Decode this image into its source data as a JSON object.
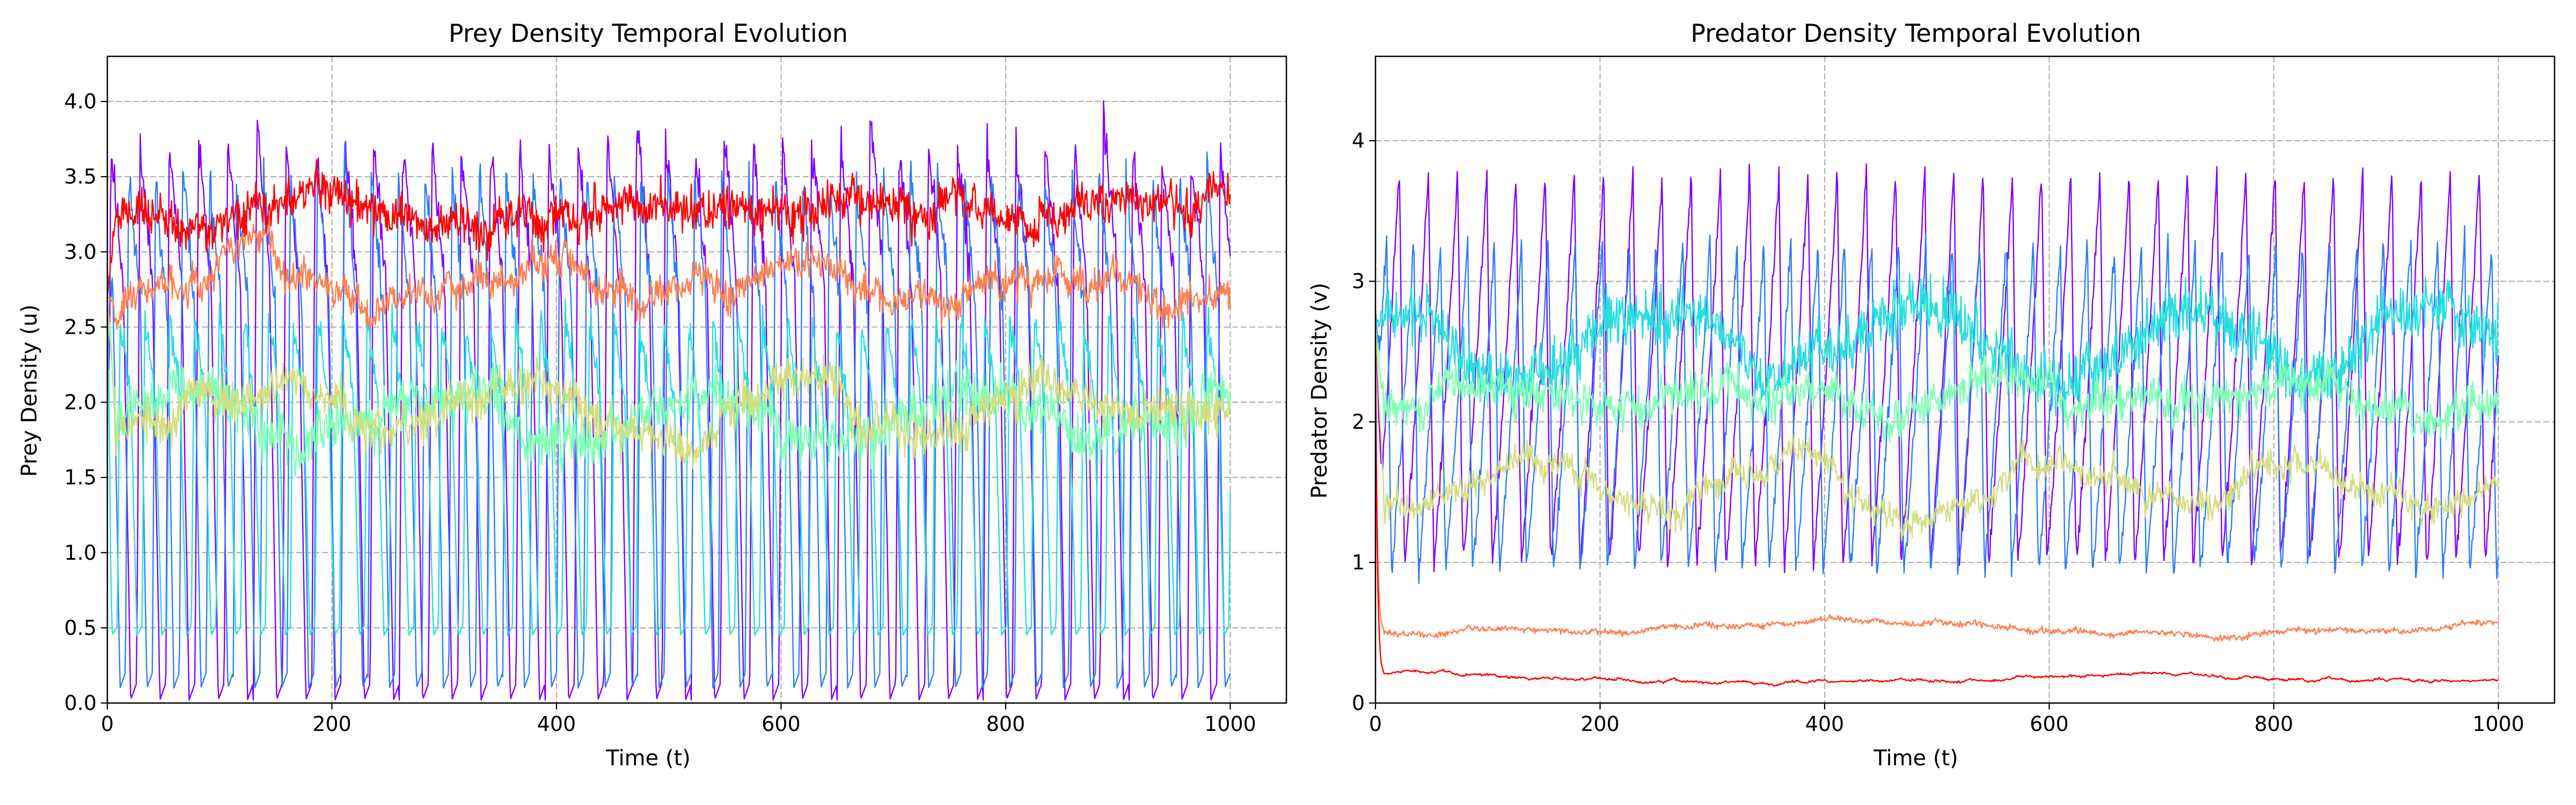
{
  "chart_data": [
    {
      "type": "line",
      "title": "Prey Density Temporal Evolution",
      "xlabel": "Time (t)",
      "ylabel": "Prey Density (u)",
      "xlim": [
        0,
        1050
      ],
      "ylim": [
        0,
        4.3
      ],
      "xticks": [
        0,
        200,
        400,
        600,
        800,
        1000
      ],
      "xtick_labels": [
        "0",
        "200",
        "400",
        "600",
        "800",
        "1000"
      ],
      "yticks": [
        0.0,
        0.5,
        1.0,
        1.5,
        2.0,
        2.5,
        3.0,
        3.5,
        4.0
      ],
      "ytick_labels": [
        "0.0",
        "0.5",
        "1.0",
        "1.5",
        "2.0",
        "2.5",
        "3.0",
        "3.5",
        "4.0"
      ],
      "grid": true,
      "grid_style": "dashed",
      "series": [
        {
          "color": "#8000ff",
          "kind": "oscillation",
          "min": 0.02,
          "max": 3.7,
          "period": 26,
          "phase": 0.0,
          "noise": 0.12,
          "peak_boost": 0.3,
          "seed": 11
        },
        {
          "color": "#2c7ef7",
          "kind": "oscillation",
          "min": 0.1,
          "max": 3.5,
          "period": 24,
          "phase": 0.33,
          "noise": 0.12,
          "peak_boost": 0.15,
          "seed": 23
        },
        {
          "color": "#2adddd",
          "kind": "oscillation",
          "min": 0.45,
          "max": 2.55,
          "period": 22,
          "phase": 0.6,
          "noise": 0.1,
          "peak_boost": 0.05,
          "seed": 37
        },
        {
          "color": "#80ffb4",
          "kind": "noisy",
          "mean": 1.9,
          "amp": 0.15,
          "noise": 0.12,
          "seed": 41
        },
        {
          "color": "#d4dd80",
          "kind": "noisy",
          "mean": 2.0,
          "amp": 0.15,
          "noise": 0.1,
          "seed": 53
        },
        {
          "color": "#ff7f50",
          "kind": "noisy",
          "mean": 2.8,
          "amp": 0.1,
          "noise": 0.08,
          "seed": 67
        },
        {
          "color": "#ff0000",
          "kind": "noisy",
          "mean": 3.28,
          "amp": 0.05,
          "noise": 0.1,
          "seed": 79
        }
      ]
    },
    {
      "type": "line",
      "title": "Predator Density Temporal Evolution",
      "xlabel": "Time (t)",
      "ylabel": "Predator Density (v)",
      "xlim": [
        0,
        1050
      ],
      "ylim": [
        0,
        4.6
      ],
      "xticks": [
        0,
        200,
        400,
        600,
        800,
        1000
      ],
      "xtick_labels": [
        "0",
        "200",
        "400",
        "600",
        "800",
        "1000"
      ],
      "yticks": [
        0,
        1,
        2,
        3,
        4
      ],
      "ytick_labels": [
        "0",
        "1",
        "2",
        "3",
        "4"
      ],
      "grid": true,
      "grid_style": "dashed",
      "series": [
        {
          "color": "#8000ff",
          "kind": "sawtooth",
          "min": 1.0,
          "max": 3.8,
          "period": 26,
          "phase": 0.0,
          "noise": 0.06,
          "seed": 101
        },
        {
          "color": "#2c7ef7",
          "kind": "sawtooth",
          "min": 0.95,
          "max": 3.3,
          "period": 24,
          "phase": 0.4,
          "noise": 0.07,
          "seed": 113
        },
        {
          "color": "#2adddd",
          "kind": "noisy",
          "mean": 2.55,
          "amp": 0.25,
          "noise": 0.15,
          "seed": 127
        },
        {
          "color": "#80ffb4",
          "kind": "noisy",
          "mean": 2.15,
          "amp": 0.1,
          "noise": 0.1,
          "seed": 131
        },
        {
          "color": "#d4dd80",
          "kind": "noisy",
          "mean": 1.55,
          "amp": 0.12,
          "noise": 0.07,
          "seed": 137
        },
        {
          "color": "#ff7f50",
          "kind": "smooth",
          "start": 2.6,
          "mean": 0.53,
          "amp": 0.05,
          "noise": 0.015,
          "seed": 149
        },
        {
          "color": "#ff0000",
          "kind": "smooth",
          "start": 2.6,
          "mean": 0.17,
          "amp": 0.02,
          "noise": 0.004,
          "seed": 151
        }
      ]
    }
  ]
}
